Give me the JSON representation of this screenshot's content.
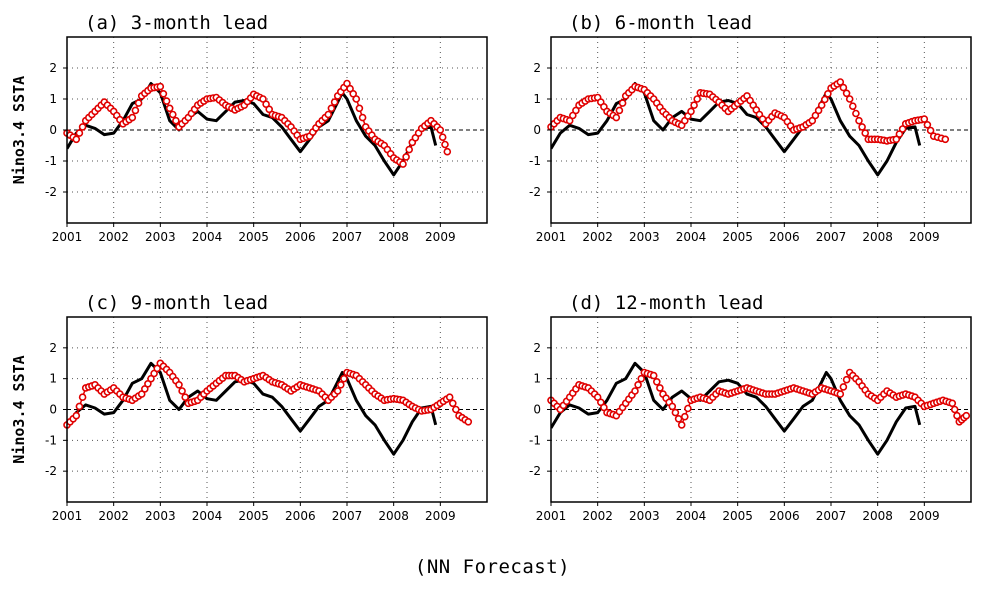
{
  "footer": "(NN Forecast)",
  "colors": {
    "observed": "#000000",
    "forecast": "#e00000",
    "grid": "#555555"
  },
  "chart_data": [
    {
      "type": "line",
      "title": "(a) 3-month lead",
      "ylabel": "Nino3.4 SSTA",
      "xlim": [
        2001,
        2010
      ],
      "ylim": [
        -3,
        3
      ],
      "xticks": [
        "2001",
        "2002",
        "2003",
        "2004",
        "2005",
        "2006",
        "2007",
        "2008",
        "2009"
      ],
      "yticks": [
        "2",
        "1",
        "0",
        "-1",
        "-2"
      ],
      "grid": true,
      "series": [
        {
          "marker": "line",
          "color": "#000000",
          "x": [
            2001.0,
            2001.2,
            2001.4,
            2001.6,
            2001.8,
            2002.0,
            2002.2,
            2002.4,
            2002.6,
            2002.8,
            2003.0,
            2003.2,
            2003.4,
            2003.6,
            2003.8,
            2004.0,
            2004.2,
            2004.4,
            2004.6,
            2004.8,
            2005.0,
            2005.2,
            2005.4,
            2005.6,
            2005.8,
            2006.0,
            2006.2,
            2006.4,
            2006.6,
            2006.8,
            2006.9,
            2007.0,
            2007.2,
            2007.4,
            2007.6,
            2007.8,
            2008.0,
            2008.2,
            2008.4,
            2008.6,
            2008.8,
            2008.9
          ],
          "y": [
            -0.6,
            -0.1,
            0.15,
            0.05,
            -0.15,
            -0.1,
            0.3,
            0.85,
            1.0,
            1.5,
            1.2,
            0.3,
            0.0,
            0.4,
            0.6,
            0.35,
            0.3,
            0.6,
            0.9,
            0.95,
            0.85,
            0.5,
            0.4,
            0.1,
            -0.3,
            -0.7,
            -0.3,
            0.1,
            0.3,
            0.9,
            1.2,
            1.0,
            0.3,
            -0.2,
            -0.5,
            -1.0,
            -1.45,
            -1.0,
            -0.4,
            0.05,
            0.1,
            -0.5
          ]
        },
        {
          "marker": "circle",
          "color": "#e00000",
          "x": [
            2001.0,
            2001.2,
            2001.4,
            2001.6,
            2001.8,
            2002.0,
            2002.2,
            2002.4,
            2002.6,
            2002.8,
            2003.0,
            2003.2,
            2003.4,
            2003.6,
            2003.8,
            2004.0,
            2004.2,
            2004.4,
            2004.6,
            2004.8,
            2005.0,
            2005.2,
            2005.4,
            2005.6,
            2005.8,
            2006.0,
            2006.2,
            2006.4,
            2006.6,
            2006.8,
            2007.0,
            2007.2,
            2007.4,
            2007.6,
            2007.8,
            2008.0,
            2008.2,
            2008.4,
            2008.6,
            2008.8,
            2009.0,
            2009.15
          ],
          "y": [
            -0.1,
            -0.3,
            0.3,
            0.6,
            0.9,
            0.6,
            0.2,
            0.4,
            1.1,
            1.35,
            1.4,
            0.7,
            0.1,
            0.4,
            0.8,
            1.0,
            1.05,
            0.8,
            0.65,
            0.8,
            1.15,
            1.0,
            0.5,
            0.4,
            0.1,
            -0.3,
            -0.2,
            0.2,
            0.5,
            1.1,
            1.5,
            1.0,
            0.1,
            -0.3,
            -0.5,
            -0.9,
            -1.1,
            -0.4,
            0.05,
            0.3,
            0.0,
            -0.7
          ]
        }
      ]
    },
    {
      "type": "line",
      "title": "(b) 6-month lead",
      "ylabel": "",
      "xlim": [
        2001,
        2010
      ],
      "ylim": [
        -3,
        3
      ],
      "xticks": [
        "2001",
        "2002",
        "2003",
        "2004",
        "2005",
        "2006",
        "2007",
        "2008",
        "2009"
      ],
      "yticks": [
        "2",
        "1",
        "0",
        "-1",
        "-2"
      ],
      "grid": true,
      "series": [
        {
          "marker": "line",
          "color": "#000000",
          "x": [
            2001.0,
            2001.2,
            2001.4,
            2001.6,
            2001.8,
            2002.0,
            2002.2,
            2002.4,
            2002.6,
            2002.8,
            2003.0,
            2003.2,
            2003.4,
            2003.6,
            2003.8,
            2004.0,
            2004.2,
            2004.4,
            2004.6,
            2004.8,
            2005.0,
            2005.2,
            2005.4,
            2005.6,
            2005.8,
            2006.0,
            2006.2,
            2006.4,
            2006.6,
            2006.8,
            2006.9,
            2007.0,
            2007.2,
            2007.4,
            2007.6,
            2007.8,
            2008.0,
            2008.2,
            2008.4,
            2008.6,
            2008.8,
            2008.9
          ],
          "y": [
            -0.6,
            -0.1,
            0.15,
            0.05,
            -0.15,
            -0.1,
            0.3,
            0.85,
            1.0,
            1.5,
            1.2,
            0.3,
            0.0,
            0.4,
            0.6,
            0.35,
            0.3,
            0.6,
            0.9,
            0.95,
            0.85,
            0.5,
            0.4,
            0.1,
            -0.3,
            -0.7,
            -0.3,
            0.1,
            0.3,
            0.9,
            1.2,
            1.0,
            0.3,
            -0.2,
            -0.5,
            -1.0,
            -1.45,
            -1.0,
            -0.4,
            0.05,
            0.1,
            -0.5
          ]
        },
        {
          "marker": "circle",
          "color": "#e00000",
          "x": [
            2001.0,
            2001.2,
            2001.4,
            2001.6,
            2001.8,
            2002.0,
            2002.2,
            2002.4,
            2002.6,
            2002.8,
            2003.0,
            2003.2,
            2003.4,
            2003.6,
            2003.8,
            2004.0,
            2004.2,
            2004.4,
            2004.6,
            2004.8,
            2005.0,
            2005.2,
            2005.4,
            2005.6,
            2005.8,
            2006.0,
            2006.2,
            2006.4,
            2006.6,
            2006.8,
            2007.0,
            2007.2,
            2007.4,
            2007.6,
            2007.8,
            2008.0,
            2008.2,
            2008.4,
            2008.6,
            2008.8,
            2009.0,
            2009.2,
            2009.45
          ],
          "y": [
            0.1,
            0.4,
            0.3,
            0.8,
            1.0,
            1.05,
            0.6,
            0.4,
            1.1,
            1.4,
            1.3,
            1.0,
            0.6,
            0.3,
            0.15,
            0.6,
            1.2,
            1.15,
            0.9,
            0.6,
            0.85,
            1.1,
            0.65,
            0.2,
            0.55,
            0.4,
            0.0,
            0.1,
            0.3,
            0.8,
            1.35,
            1.55,
            1.0,
            0.3,
            -0.3,
            -0.3,
            -0.35,
            -0.3,
            0.2,
            0.3,
            0.35,
            -0.2,
            -0.3
          ]
        }
      ]
    },
    {
      "type": "line",
      "title": "(c) 9-month lead",
      "ylabel": "Nino3.4 SSTA",
      "xlim": [
        2001,
        2010
      ],
      "ylim": [
        -3,
        3
      ],
      "xticks": [
        "2001",
        "2002",
        "2003",
        "2004",
        "2005",
        "2006",
        "2007",
        "2008",
        "2009"
      ],
      "yticks": [
        "2",
        "1",
        "0",
        "-1",
        "-2"
      ],
      "grid": true,
      "series": [
        {
          "marker": "line",
          "color": "#000000",
          "x": [
            2001.0,
            2001.2,
            2001.4,
            2001.6,
            2001.8,
            2002.0,
            2002.2,
            2002.4,
            2002.6,
            2002.8,
            2003.0,
            2003.2,
            2003.4,
            2003.6,
            2003.8,
            2004.0,
            2004.2,
            2004.4,
            2004.6,
            2004.8,
            2005.0,
            2005.2,
            2005.4,
            2005.6,
            2005.8,
            2006.0,
            2006.2,
            2006.4,
            2006.6,
            2006.8,
            2006.9,
            2007.0,
            2007.2,
            2007.4,
            2007.6,
            2007.8,
            2008.0,
            2008.2,
            2008.4,
            2008.6,
            2008.8,
            2008.9
          ],
          "y": [
            -0.6,
            -0.1,
            0.15,
            0.05,
            -0.15,
            -0.1,
            0.3,
            0.85,
            1.0,
            1.5,
            1.2,
            0.3,
            0.0,
            0.4,
            0.6,
            0.35,
            0.3,
            0.6,
            0.9,
            0.95,
            0.85,
            0.5,
            0.4,
            0.1,
            -0.3,
            -0.7,
            -0.3,
            0.1,
            0.3,
            0.9,
            1.2,
            1.0,
            0.3,
            -0.2,
            -0.5,
            -1.0,
            -1.45,
            -1.0,
            -0.4,
            0.05,
            0.1,
            -0.5
          ]
        },
        {
          "marker": "circle",
          "color": "#e00000",
          "x": [
            2001.0,
            2001.2,
            2001.4,
            2001.6,
            2001.8,
            2002.0,
            2002.2,
            2002.4,
            2002.6,
            2002.8,
            2003.0,
            2003.2,
            2003.4,
            2003.6,
            2003.8,
            2004.0,
            2004.2,
            2004.4,
            2004.6,
            2004.8,
            2005.0,
            2005.2,
            2005.4,
            2005.6,
            2005.8,
            2006.0,
            2006.2,
            2006.4,
            2006.6,
            2006.8,
            2007.0,
            2007.2,
            2007.4,
            2007.6,
            2007.8,
            2008.0,
            2008.2,
            2008.4,
            2008.6,
            2008.8,
            2009.0,
            2009.2,
            2009.4,
            2009.6
          ],
          "y": [
            -0.5,
            -0.2,
            0.7,
            0.8,
            0.5,
            0.7,
            0.4,
            0.3,
            0.5,
            1.0,
            1.5,
            1.2,
            0.8,
            0.2,
            0.3,
            0.6,
            0.85,
            1.1,
            1.1,
            0.9,
            1.0,
            1.1,
            0.9,
            0.8,
            0.6,
            0.8,
            0.7,
            0.6,
            0.3,
            0.6,
            1.2,
            1.1,
            0.8,
            0.5,
            0.3,
            0.35,
            0.3,
            0.1,
            -0.05,
            0.0,
            0.2,
            0.4,
            -0.2,
            -0.4
          ]
        }
      ]
    },
    {
      "type": "line",
      "title": "(d) 12-month lead",
      "ylabel": "",
      "xlim": [
        2001,
        2010
      ],
      "ylim": [
        -3,
        3
      ],
      "xticks": [
        "2001",
        "2002",
        "2003",
        "2004",
        "2005",
        "2006",
        "2007",
        "2008",
        "2009"
      ],
      "yticks": [
        "2",
        "1",
        "0",
        "-1",
        "-2"
      ],
      "grid": true,
      "series": [
        {
          "marker": "line",
          "color": "#000000",
          "x": [
            2001.0,
            2001.2,
            2001.4,
            2001.6,
            2001.8,
            2002.0,
            2002.2,
            2002.4,
            2002.6,
            2002.8,
            2003.0,
            2003.2,
            2003.4,
            2003.6,
            2003.8,
            2004.0,
            2004.2,
            2004.4,
            2004.6,
            2004.8,
            2005.0,
            2005.2,
            2005.4,
            2005.6,
            2005.8,
            2006.0,
            2006.2,
            2006.4,
            2006.6,
            2006.8,
            2006.9,
            2007.0,
            2007.2,
            2007.4,
            2007.6,
            2007.8,
            2008.0,
            2008.2,
            2008.4,
            2008.6,
            2008.8,
            2008.9
          ],
          "y": [
            -0.6,
            -0.1,
            0.15,
            0.05,
            -0.15,
            -0.1,
            0.3,
            0.85,
            1.0,
            1.5,
            1.2,
            0.3,
            0.0,
            0.4,
            0.6,
            0.35,
            0.3,
            0.6,
            0.9,
            0.95,
            0.85,
            0.5,
            0.4,
            0.1,
            -0.3,
            -0.7,
            -0.3,
            0.1,
            0.3,
            0.9,
            1.2,
            1.0,
            0.3,
            -0.2,
            -0.5,
            -1.0,
            -1.45,
            -1.0,
            -0.4,
            0.05,
            0.1,
            -0.5
          ]
        },
        {
          "marker": "circle",
          "color": "#e00000",
          "x": [
            2001.0,
            2001.2,
            2001.4,
            2001.6,
            2001.8,
            2002.0,
            2002.2,
            2002.4,
            2002.6,
            2002.8,
            2003.0,
            2003.2,
            2003.4,
            2003.6,
            2003.8,
            2004.0,
            2004.2,
            2004.4,
            2004.6,
            2004.8,
            2005.0,
            2005.2,
            2005.4,
            2005.6,
            2005.8,
            2006.0,
            2006.2,
            2006.4,
            2006.6,
            2006.8,
            2007.0,
            2007.2,
            2007.4,
            2007.6,
            2007.8,
            2008.0,
            2008.2,
            2008.4,
            2008.6,
            2008.8,
            2009.0,
            2009.2,
            2009.4,
            2009.6,
            2009.75,
            2009.9
          ],
          "y": [
            0.3,
            0.0,
            0.4,
            0.8,
            0.7,
            0.4,
            -0.1,
            -0.2,
            0.2,
            0.6,
            1.2,
            1.1,
            0.5,
            0.1,
            -0.5,
            0.3,
            0.4,
            0.3,
            0.6,
            0.5,
            0.6,
            0.7,
            0.6,
            0.5,
            0.5,
            0.6,
            0.7,
            0.6,
            0.5,
            0.7,
            0.6,
            0.5,
            1.2,
            0.9,
            0.5,
            0.3,
            0.6,
            0.4,
            0.5,
            0.4,
            0.1,
            0.2,
            0.3,
            0.2,
            -0.4,
            -0.2
          ]
        }
      ]
    }
  ]
}
